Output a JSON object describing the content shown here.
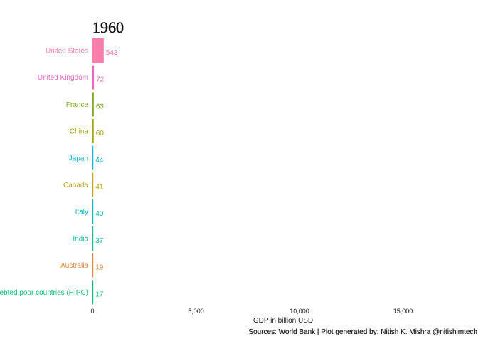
{
  "chart_data": {
    "type": "bar",
    "orientation": "horizontal",
    "title": "1960",
    "xlabel": "GDP in billion USD",
    "ylabel": "",
    "xlim": [
      0,
      18500
    ],
    "xticks": [
      0,
      5000,
      10000,
      15000
    ],
    "xtick_labels": [
      "0",
      "5,000",
      "10,000",
      "15,000"
    ],
    "grid": false,
    "legend": "none",
    "categories": [
      "United States",
      "United Kingdom",
      "France",
      "China",
      "Japan",
      "Canada",
      "Italy",
      "India",
      "Australia",
      "Heavily indebted poor countries (HIPC)"
    ],
    "values": [
      543,
      72,
      63,
      60,
      44,
      41,
      40,
      37,
      19,
      17
    ],
    "value_labels": [
      "543",
      "72",
      "63",
      "60",
      "44",
      "41",
      "40",
      "37",
      "19",
      "17"
    ],
    "colors": [
      "#f77daa",
      "#e76bb8",
      "#7cac1f",
      "#a4a515",
      "#1bb3ce",
      "#c3a311",
      "#1bb3b9",
      "#1ab8a3",
      "#e08a3c",
      "#13bf78"
    ],
    "caption": "Sources: World Bank | Plot generated by: Nitish K. Mishra @nitishimtech"
  }
}
